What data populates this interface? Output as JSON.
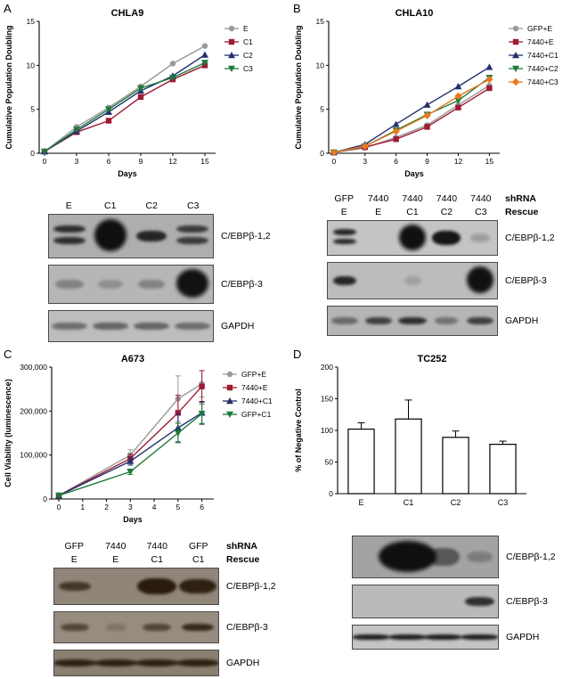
{
  "background": "#ffffff",
  "figure": {
    "panels": [
      {
        "letter": "A",
        "blot": {
          "lanes": 4,
          "band_color": "#0d0d0d",
          "headers": [
            {
              "cells": [
                "E",
                "C1",
                "C2",
                "C3"
              ],
              "label": ""
            }
          ],
          "rows": [
            {
              "label": "C/EBPβ-1,2",
              "bg": "#aeaeae",
              "bands": [
                {
                  "lane": 0,
                  "type": "double",
                  "i": 0.8
                },
                {
                  "lane": 1,
                  "type": "blob",
                  "i": 0.98
                },
                {
                  "lane": 2,
                  "type": "single",
                  "i": 0.85,
                  "w": 0.75
                },
                {
                  "lane": 3,
                  "type": "double",
                  "i": 0.72
                }
              ]
            },
            {
              "label": "C/EBPβ-3",
              "bg": "#b6b6b6",
              "bands": [
                {
                  "lane": 0,
                  "type": "single",
                  "i": 0.3,
                  "w": 0.7
                },
                {
                  "lane": 1,
                  "type": "single",
                  "i": 0.22,
                  "w": 0.6
                },
                {
                  "lane": 2,
                  "type": "single",
                  "i": 0.3,
                  "w": 0.65
                },
                {
                  "lane": 3,
                  "type": "blob",
                  "i": 0.97
                }
              ]
            },
            {
              "label": "GAPDH",
              "bg": "#bdbdbd",
              "bands": [
                {
                  "lane": 0,
                  "type": "single",
                  "i": 0.45,
                  "w": 0.85
                },
                {
                  "lane": 1,
                  "type": "single",
                  "i": 0.5,
                  "w": 0.85
                },
                {
                  "lane": 2,
                  "type": "single",
                  "i": 0.5,
                  "w": 0.85
                },
                {
                  "lane": 3,
                  "type": "single",
                  "i": 0.45,
                  "w": 0.85
                }
              ]
            }
          ]
        }
      },
      {
        "letter": "B",
        "blot": {
          "lanes": 5,
          "band_color": "#0d0d0d",
          "headers": [
            {
              "cells": [
                "GFP",
                "7440",
                "7440",
                "7440",
                "7440"
              ],
              "label": "shRNA"
            },
            {
              "cells": [
                "E",
                "E",
                "C1",
                "C2",
                "C3"
              ],
              "label": "Rescue"
            }
          ],
          "rows": [
            {
              "label": "C/EBPβ-1,2",
              "bg": "#c4c4c4",
              "bands": [
                {
                  "lane": 0,
                  "type": "double",
                  "i": 0.85,
                  "w": 0.7
                },
                {
                  "lane": 2,
                  "type": "blob",
                  "i": 0.98
                },
                {
                  "lane": 3,
                  "type": "single",
                  "i": 0.95,
                  "w": 0.85,
                  "h": 0.4
                },
                {
                  "lane": 4,
                  "type": "single",
                  "i": 0.2,
                  "w": 0.6
                }
              ]
            },
            {
              "label": "C/EBPβ-3",
              "bg": "#bcbcbc",
              "bands": [
                {
                  "lane": 0,
                  "type": "single",
                  "i": 0.85,
                  "w": 0.7
                },
                {
                  "lane": 2,
                  "type": "single",
                  "i": 0.15,
                  "w": 0.5
                },
                {
                  "lane": 4,
                  "type": "blob",
                  "i": 0.98
                }
              ]
            },
            {
              "label": "GAPDH",
              "bg": "#b5b5b5",
              "bands": [
                {
                  "lane": 0,
                  "type": "single",
                  "i": 0.45,
                  "w": 0.8
                },
                {
                  "lane": 1,
                  "type": "single",
                  "i": 0.7,
                  "w": 0.8
                },
                {
                  "lane": 2,
                  "type": "single",
                  "i": 0.8,
                  "w": 0.85
                },
                {
                  "lane": 3,
                  "type": "single",
                  "i": 0.4,
                  "w": 0.7
                },
                {
                  "lane": 4,
                  "type": "single",
                  "i": 0.7,
                  "w": 0.8
                }
              ]
            }
          ]
        }
      },
      {
        "letter": "C",
        "blot": {
          "lanes": 4,
          "band_color": "#241608",
          "headers": [
            {
              "cells": [
                "GFP",
                "7440",
                "7440",
                "GFP"
              ],
              "label": "shRNA"
            },
            {
              "cells": [
                "E",
                "E",
                "C1",
                "C1"
              ],
              "label": "Rescue"
            }
          ],
          "rows": [
            {
              "label": "C/EBPβ-1,2",
              "bg": "#8f8578",
              "bands": [
                {
                  "lane": 0,
                  "type": "single",
                  "i": 0.7,
                  "w": 0.8
                },
                {
                  "lane": 2,
                  "type": "single",
                  "i": 0.95,
                  "w": 0.95,
                  "h": 0.45
                },
                {
                  "lane": 3,
                  "type": "single",
                  "i": 0.9,
                  "w": 0.9,
                  "h": 0.4
                }
              ]
            },
            {
              "label": "C/EBPβ-3",
              "bg": "#968c7f",
              "bands": [
                {
                  "lane": 0,
                  "type": "single",
                  "i": 0.6,
                  "w": 0.7
                },
                {
                  "lane": 1,
                  "type": "single",
                  "i": 0.2,
                  "w": 0.5
                },
                {
                  "lane": 2,
                  "type": "single",
                  "i": 0.6,
                  "w": 0.7
                },
                {
                  "lane": 3,
                  "type": "single",
                  "i": 0.85,
                  "w": 0.8
                }
              ]
            },
            {
              "label": "GAPDH",
              "bg": "#8a8072",
              "bands": [
                {
                  "lane": 0,
                  "type": "single",
                  "i": 0.9,
                  "w": 1.05
                },
                {
                  "lane": 1,
                  "type": "single",
                  "i": 0.9,
                  "w": 1.05
                },
                {
                  "lane": 2,
                  "type": "single",
                  "i": 0.9,
                  "w": 1.05
                },
                {
                  "lane": 3,
                  "type": "single",
                  "i": 0.9,
                  "w": 1.05
                }
              ]
            }
          ]
        }
      },
      {
        "letter": "D",
        "blot": {
          "lanes": 4,
          "band_color": "#0d0d0d",
          "headers": [],
          "rows": [
            {
              "label": "C/EBPβ-1,2",
              "bg": "#a3a3a3",
              "bands": [
                {
                  "lane": 1,
                  "type": "blob",
                  "i": 0.98,
                  "w": 1.6
                },
                {
                  "lane": 2,
                  "type": "single",
                  "i": 0.5,
                  "w": 0.9,
                  "h": 0.45
                },
                {
                  "lane": 3,
                  "type": "single",
                  "i": 0.25,
                  "w": 0.7
                }
              ]
            },
            {
              "label": "C/EBPβ-3",
              "bg": "#bababa",
              "bands": [
                {
                  "lane": 3,
                  "type": "single",
                  "i": 0.8,
                  "w": 0.8
                }
              ]
            },
            {
              "label": "GAPDH",
              "bg": "#c4c4c4",
              "bands": [
                {
                  "lane": 0,
                  "type": "single",
                  "i": 0.92,
                  "w": 1.05
                },
                {
                  "lane": 1,
                  "type": "single",
                  "i": 0.92,
                  "w": 1.05
                },
                {
                  "lane": 2,
                  "type": "single",
                  "i": 0.92,
                  "w": 1.05
                },
                {
                  "lane": 3,
                  "type": "single",
                  "i": 0.92,
                  "w": 1.05
                }
              ]
            }
          ]
        }
      }
    ]
  },
  "chart_data": [
    {
      "type": "line",
      "title": "CHLA9",
      "xlabel": "Days",
      "ylabel": "Cumulative Population Doubling",
      "xlim": [
        -0.5,
        16
      ],
      "ylim": [
        0,
        15
      ],
      "xticks": [
        0,
        3,
        6,
        9,
        12,
        15
      ],
      "yticks": [
        0,
        5,
        10,
        15
      ],
      "x": [
        0,
        3,
        6,
        9,
        12,
        15
      ],
      "legend_position": "right",
      "grid": false,
      "series": [
        {
          "name": "E",
          "color": "#999999",
          "marker": "circle",
          "y": [
            0.2,
            3.0,
            5.2,
            7.6,
            10.2,
            12.2
          ]
        },
        {
          "name": "C1",
          "color": "#9e1b32",
          "marker": "square",
          "y": [
            0.2,
            2.4,
            3.7,
            6.4,
            8.4,
            10.0
          ]
        },
        {
          "name": "C2",
          "color": "#23306e",
          "marker": "triangle-up",
          "y": [
            0.2,
            2.5,
            4.7,
            7.1,
            8.8,
            11.2
          ]
        },
        {
          "name": "C3",
          "color": "#1e7a3c",
          "marker": "triangle-down",
          "y": [
            0.2,
            2.7,
            5.0,
            7.4,
            8.6,
            10.3
          ]
        }
      ]
    },
    {
      "type": "line",
      "title": "CHLA10",
      "xlabel": "Days",
      "ylabel": "Cumulative Population Doubling",
      "xlim": [
        -0.5,
        16
      ],
      "ylim": [
        0,
        15
      ],
      "xticks": [
        0,
        3,
        6,
        9,
        12,
        15
      ],
      "yticks": [
        0,
        5,
        10,
        15
      ],
      "x": [
        0,
        3,
        6,
        9,
        12,
        15
      ],
      "legend_position": "right",
      "grid": false,
      "series": [
        {
          "name": "GFP+E",
          "color": "#999999",
          "marker": "circle",
          "y": [
            0.1,
            0.6,
            1.8,
            3.2,
            5.5,
            7.7
          ]
        },
        {
          "name": "7440+E",
          "color": "#9e1b32",
          "marker": "square",
          "y": [
            0.1,
            0.7,
            1.6,
            3.0,
            5.2,
            7.4
          ]
        },
        {
          "name": "7440+C1",
          "color": "#23306e",
          "marker": "triangle-up",
          "y": [
            0.1,
            1.0,
            3.3,
            5.5,
            7.6,
            9.8
          ]
        },
        {
          "name": "7440+C2",
          "color": "#1e7a3c",
          "marker": "triangle-down",
          "y": [
            0.1,
            0.8,
            2.6,
            4.4,
            6.0,
            8.6
          ]
        },
        {
          "name": "7440+C3",
          "color": "#e87a1e",
          "marker": "diamond",
          "y": [
            0.1,
            0.8,
            2.5,
            4.3,
            6.5,
            8.4
          ]
        }
      ]
    },
    {
      "type": "line",
      "title": "A673",
      "xlabel": "Days",
      "ylabel": "Cell Viability (luminescence)",
      "xlim": [
        -0.3,
        6.5
      ],
      "ylim": [
        0,
        300000
      ],
      "xticks": [
        0,
        1,
        2,
        3,
        4,
        5,
        6
      ],
      "yticks": [
        0,
        100000,
        200000,
        300000
      ],
      "ytick_labels": [
        "0",
        "100,000",
        "200,000",
        "300,000"
      ],
      "x": [
        0,
        3,
        5,
        6
      ],
      "legend_position": "right",
      "grid": false,
      "series": [
        {
          "name": "GFP+E",
          "color": "#999999",
          "marker": "circle",
          "y": [
            8000,
            100000,
            228000,
            262000
          ],
          "err": [
            3000,
            12000,
            52000,
            30000
          ]
        },
        {
          "name": "7440+E",
          "color": "#9e1b32",
          "marker": "square",
          "y": [
            8000,
            92000,
            196000,
            256000
          ],
          "err": [
            3000,
            10000,
            40000,
            36000
          ]
        },
        {
          "name": "7440+C1",
          "color": "#23306e",
          "marker": "triangle-up",
          "y": [
            8000,
            86000,
            162000,
            196000
          ],
          "err": [
            3000,
            9000,
            32000,
            26000
          ]
        },
        {
          "name": "GFP+C1",
          "color": "#1e7a3c",
          "marker": "triangle-down",
          "y": [
            8000,
            62000,
            150000,
            194000
          ],
          "err": [
            3000,
            6000,
            22000,
            22000
          ]
        }
      ]
    },
    {
      "type": "bar",
      "title": "TC252",
      "xlabel": "",
      "ylabel": "% of Negative Control",
      "categories": [
        "E",
        "C1",
        "C2",
        "C3"
      ],
      "values": [
        102,
        118,
        89,
        78
      ],
      "errors": [
        10,
        30,
        10,
        5
      ],
      "ylim": [
        0,
        200
      ],
      "yticks": [
        0,
        50,
        100,
        150,
        200
      ],
      "bar_fill": "#ffffff",
      "bar_stroke": "#000000",
      "grid": false
    }
  ]
}
